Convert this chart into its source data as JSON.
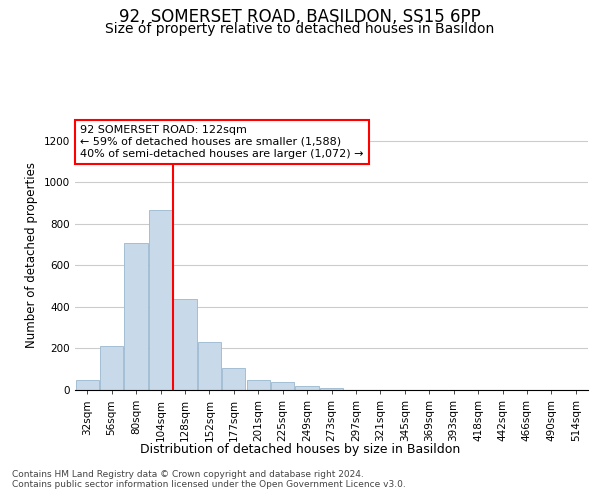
{
  "title1": "92, SOMERSET ROAD, BASILDON, SS15 6PP",
  "title2": "Size of property relative to detached houses in Basildon",
  "xlabel": "Distribution of detached houses by size in Basildon",
  "ylabel": "Number of detached properties",
  "categories": [
    "32sqm",
    "56sqm",
    "80sqm",
    "104sqm",
    "128sqm",
    "152sqm",
    "177sqm",
    "201sqm",
    "225sqm",
    "249sqm",
    "273sqm",
    "297sqm",
    "321sqm",
    "345sqm",
    "369sqm",
    "393sqm",
    "418sqm",
    "442sqm",
    "466sqm",
    "490sqm",
    "514sqm"
  ],
  "values": [
    48,
    210,
    710,
    868,
    438,
    232,
    105,
    48,
    40,
    20,
    10,
    0,
    0,
    0,
    0,
    0,
    0,
    0,
    0,
    0,
    0
  ],
  "bar_color": "#c8d9ea",
  "bar_edge_color": "#9ab8d0",
  "vline_x": 4,
  "vline_color": "red",
  "annotation_text": "92 SOMERSET ROAD: 122sqm\n← 59% of detached houses are smaller (1,588)\n40% of semi-detached houses are larger (1,072) →",
  "ylim": [
    0,
    1300
  ],
  "yticks": [
    0,
    200,
    400,
    600,
    800,
    1000,
    1200
  ],
  "footer_line1": "Contains HM Land Registry data © Crown copyright and database right 2024.",
  "footer_line2": "Contains public sector information licensed under the Open Government Licence v3.0.",
  "bg_color": "#ffffff",
  "plot_bg_color": "#ffffff",
  "grid_color": "#cccccc",
  "title1_fontsize": 12,
  "title2_fontsize": 10,
  "xlabel_fontsize": 9,
  "ylabel_fontsize": 8.5,
  "tick_fontsize": 7.5,
  "annotation_fontsize": 8,
  "footer_fontsize": 6.5
}
